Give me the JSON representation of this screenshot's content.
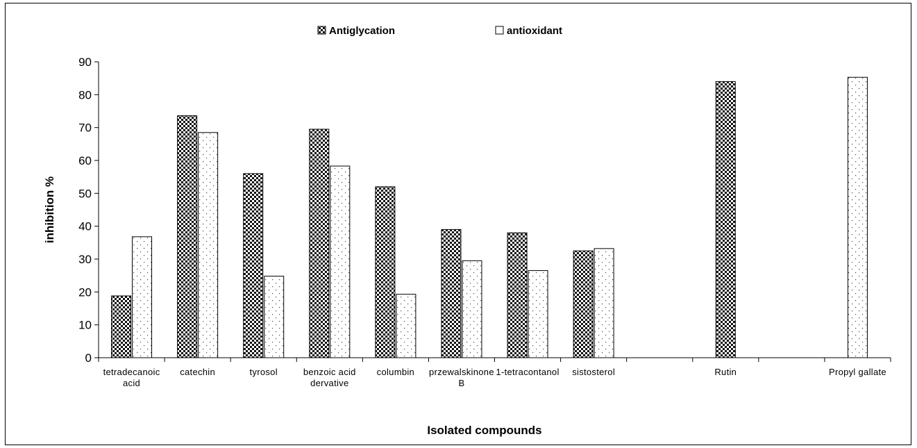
{
  "chart_data": {
    "type": "bar",
    "title": "",
    "xlabel": "Isolated compounds",
    "ylabel": "inhibition %",
    "ylim": [
      0,
      90
    ],
    "yticks": [
      0,
      10,
      20,
      30,
      40,
      50,
      60,
      70,
      80,
      90
    ],
    "grid": false,
    "legend_position": "top",
    "categories": [
      [
        "tetradecanoic",
        "acid"
      ],
      [
        "catechin"
      ],
      [
        "tyrosol"
      ],
      [
        "benzoic acid",
        "dervative"
      ],
      [
        "columbin"
      ],
      [
        "przewalskinone",
        "B"
      ],
      [
        "1-tetracontanol"
      ],
      [
        "sistosterol"
      ],
      [
        ""
      ],
      [
        "Rutin"
      ],
      [
        ""
      ],
      [
        "Propyl gallate"
      ]
    ],
    "series": [
      {
        "name": "Antiglycation",
        "color": "#000000",
        "pattern": "checker",
        "values": [
          18.8,
          73.6,
          56.0,
          69.5,
          52.0,
          39.0,
          38.0,
          32.5,
          null,
          84.0,
          null,
          null
        ]
      },
      {
        "name": "antioxidant",
        "color": "#ffffff",
        "pattern": "dots",
        "values": [
          36.8,
          68.5,
          24.8,
          58.3,
          19.3,
          29.5,
          26.5,
          33.2,
          null,
          null,
          null,
          85.3
        ]
      }
    ]
  }
}
